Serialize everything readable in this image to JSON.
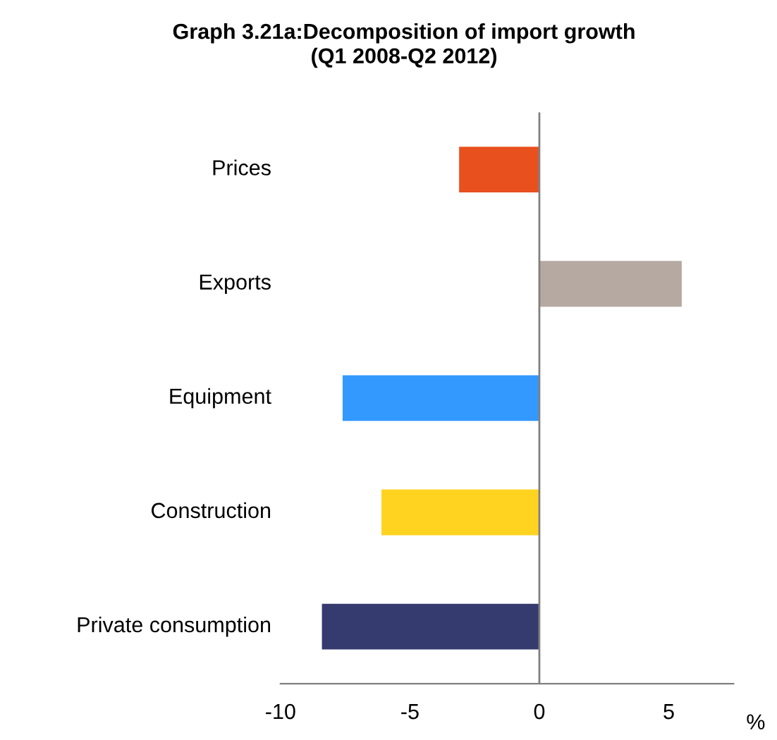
{
  "chart_data": {
    "type": "bar",
    "orientation": "horizontal",
    "title": "Graph 3.21a:Decomposition of import growth",
    "subtitle": "(Q1 2008-Q2 2012)",
    "xlabel": "%",
    "categories": [
      "Prices",
      "Exports",
      "Equipment",
      "Construction",
      "Private consumption"
    ],
    "values": [
      -3.1,
      5.5,
      -7.6,
      -6.1,
      -8.4
    ],
    "colors": [
      "#e8501e",
      "#b6a9a2",
      "#3399ff",
      "#ffd320",
      "#353b6e"
    ],
    "xlim": [
      -10,
      7.5
    ],
    "xticks": [
      -10,
      -5,
      0,
      5
    ],
    "ref_lines": [
      {
        "axis": "x",
        "value": 0,
        "color": "#808080"
      }
    ],
    "legend": false
  }
}
